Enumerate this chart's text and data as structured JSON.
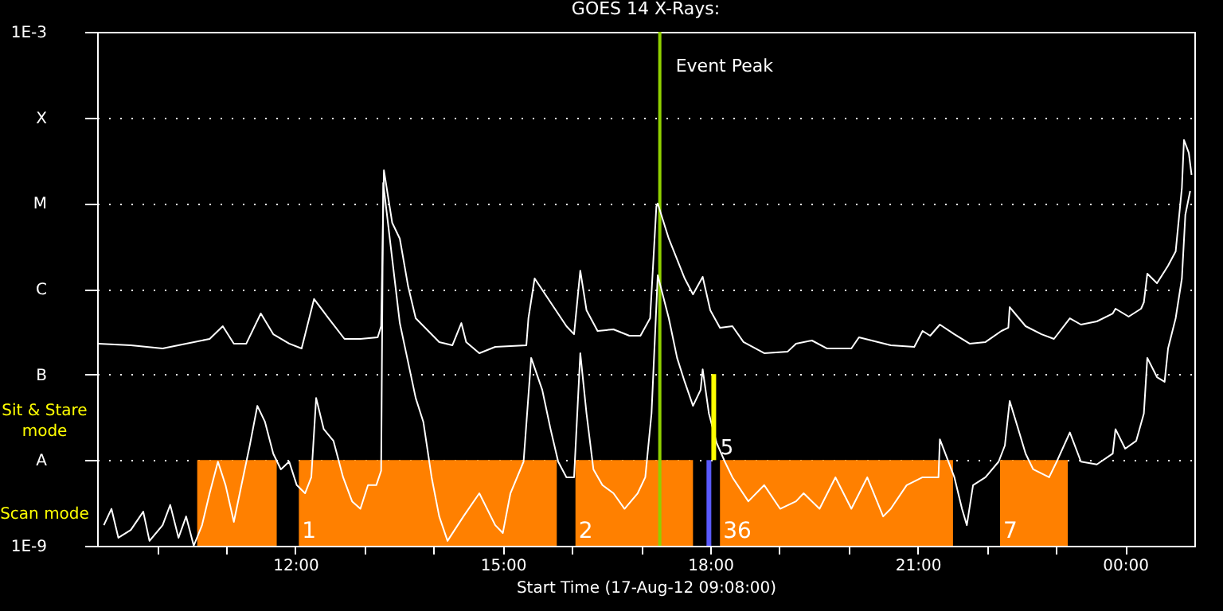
{
  "chart_data": {
    "type": "line",
    "title": "GOES 14 X-Rays:",
    "xlabel": "Start Time (17-Aug-12 09:08:00)",
    "xlim": [
      9.133,
      25.0
    ],
    "xticks": [
      {
        "value": 10,
        "label": null
      },
      {
        "value": 11,
        "label": null
      },
      {
        "value": 12,
        "label": "12:00"
      },
      {
        "value": 13,
        "label": null
      },
      {
        "value": 14,
        "label": null
      },
      {
        "value": 15,
        "label": "15:00"
      },
      {
        "value": 16,
        "label": null
      },
      {
        "value": 17,
        "label": null
      },
      {
        "value": 18,
        "label": "18:00"
      },
      {
        "value": 19,
        "label": null
      },
      {
        "value": 20,
        "label": null
      },
      {
        "value": 21,
        "label": "21:00"
      },
      {
        "value": 22,
        "label": null
      },
      {
        "value": 23,
        "label": null
      },
      {
        "value": 24,
        "label": "00:00"
      }
    ],
    "ylim": [
      1e-09,
      0.001
    ],
    "log": true,
    "grid": "y",
    "line_style": "solid",
    "yticks": [
      {
        "value": 1e-09,
        "label": "1E-9"
      },
      {
        "value": 1e-08,
        "label": "A"
      },
      {
        "value": 1e-07,
        "label": "B"
      },
      {
        "value": 1e-06,
        "label": "C"
      },
      {
        "value": 1e-05,
        "label": "M"
      },
      {
        "value": 0.0001,
        "label": "X"
      },
      {
        "value": 0.001,
        "label": "1E-3"
      }
    ],
    "bands": [
      {
        "axis": "x",
        "from": 10.58,
        "to": 11.73,
        "color": "#ff8000"
      },
      {
        "axis": "x",
        "from": 12.05,
        "to": 15.78,
        "label": "1",
        "color": "#ff8000"
      },
      {
        "axis": "x",
        "from": 16.05,
        "to": 17.75,
        "label": "2",
        "color": "#ff8000"
      },
      {
        "axis": "x",
        "from": 18.14,
        "to": 21.51,
        "label": "36",
        "color": "#ff8000"
      },
      {
        "axis": "x",
        "from": 22.19,
        "to": 23.17,
        "label": "7",
        "color": "#ff8000"
      }
    ],
    "ref_lines": [
      {
        "axis": "x",
        "value": 17.27,
        "label": "Event Peak",
        "color": "#90d000"
      }
    ],
    "annotations": [
      "Sit & Stare mode",
      "Scan mode",
      {
        "text": "5",
        "x": 18.24,
        "y": 1.4e-08
      }
    ],
    "series": [
      {
        "color": "#ffffff",
        "x": [
          9.15,
          9.62,
          10.08,
          10.42,
          10.76,
          10.95,
          11.11,
          11.29,
          11.5,
          11.68,
          11.91,
          12.09,
          12.27,
          12.48,
          12.71,
          12.94,
          13.19,
          13.24,
          13.28,
          13.4,
          13.51,
          13.63,
          13.74,
          14.08,
          14.27,
          14.4,
          14.47,
          14.66,
          14.89,
          15.34,
          15.37,
          15.46,
          15.69,
          15.92,
          16.03,
          16.12,
          16.21,
          16.37,
          16.6,
          16.83,
          16.99,
          17.13,
          17.22,
          17.24,
          17.4,
          17.63,
          17.75,
          17.89,
          18.0,
          18.14,
          18.32,
          18.48,
          18.78,
          19.12,
          19.24,
          19.47,
          19.69,
          20.04,
          20.15,
          20.61,
          20.95,
          21.07,
          21.18,
          21.32,
          21.53,
          21.75,
          21.98,
          22.21,
          22.31,
          22.33,
          22.56,
          22.79,
          22.97,
          23.2,
          23.36,
          23.59,
          23.82,
          23.86,
          24.05,
          24.23,
          24.27,
          24.32,
          24.46,
          24.62,
          24.73,
          24.82,
          24.85,
          24.92,
          24.96
        ],
        "values": [
          2.29e-07,
          2.19e-07,
          2.01e-07,
          2.29e-07,
          2.6e-07,
          3.66e-07,
          2.29e-07,
          2.29e-07,
          5.15e-07,
          2.95e-07,
          2.29e-07,
          2.01e-07,
          7.6e-07,
          4.53e-07,
          2.6e-07,
          2.6e-07,
          2.71e-07,
          3.66e-07,
          2.42e-05,
          5.9e-06,
          3.85e-06,
          1.07e-06,
          4.53e-07,
          2.39e-07,
          2.19e-07,
          3.98e-07,
          2.39e-07,
          1.77e-07,
          2.1e-07,
          2.19e-07,
          4.53e-07,
          1.32e-06,
          6.95e-07,
          3.66e-07,
          2.95e-07,
          1.63e-06,
          5.61e-07,
          3.22e-07,
          3.36e-07,
          2.83e-07,
          2.83e-07,
          4.53e-07,
          9.1e-06,
          9.9e-06,
          3.85e-06,
          1.32e-06,
          8.6e-07,
          1.38e-06,
          5.61e-07,
          3.51e-07,
          3.66e-07,
          2.39e-07,
          1.77e-07,
          1.85e-07,
          2.29e-07,
          2.49e-07,
          2.01e-07,
          2.01e-07,
          2.71e-07,
          2.19e-07,
          2.1e-07,
          3.22e-07,
          2.83e-07,
          3.82e-07,
          2.95e-07,
          2.29e-07,
          2.39e-07,
          3.22e-07,
          3.51e-07,
          6.1e-07,
          3.66e-07,
          2.95e-07,
          2.6e-07,
          4.53e-07,
          3.82e-07,
          4.16e-07,
          5.15e-07,
          5.86e-07,
          4.73e-07,
          5.86e-07,
          6.95e-07,
          1.5e-06,
          1.16e-06,
          1.86e-06,
          2.73e-06,
          1.51e-05,
          5.46e-05,
          3.87e-05,
          2.13e-05
        ]
      },
      {
        "color": "#ffffff",
        "x": [
          9.23,
          9.34,
          9.44,
          9.62,
          9.8,
          9.89,
          10.08,
          10.19,
          10.31,
          10.42,
          10.53,
          10.65,
          10.76,
          10.88,
          10.99,
          11.11,
          11.22,
          11.34,
          11.45,
          11.56,
          11.68,
          11.79,
          11.91,
          12.02,
          12.14,
          12.23,
          12.3,
          12.41,
          12.55,
          12.69,
          12.82,
          12.94,
          13.05,
          13.17,
          13.24,
          13.27,
          13.51,
          13.74,
          13.85,
          13.97,
          14.08,
          14.2,
          14.43,
          14.66,
          14.89,
          15.0,
          15.11,
          15.3,
          15.41,
          15.57,
          15.69,
          15.8,
          15.92,
          16.03,
          16.12,
          16.21,
          16.31,
          16.44,
          16.6,
          16.76,
          16.95,
          17.06,
          17.15,
          17.24,
          17.4,
          17.52,
          17.63,
          17.75,
          17.86,
          17.89,
          17.98,
          18.09,
          18.21,
          18.32,
          18.55,
          18.78,
          19.01,
          19.24,
          19.35,
          19.58,
          19.81,
          20.04,
          20.27,
          20.5,
          20.61,
          20.84,
          21.07,
          21.3,
          21.32,
          21.53,
          21.64,
          21.71,
          21.8,
          21.98,
          22.17,
          22.26,
          22.33,
          22.44,
          22.56,
          22.67,
          22.9,
          23.01,
          23.2,
          23.36,
          23.59,
          23.82,
          23.86,
          24.0,
          24.16,
          24.27,
          24.32,
          24.46,
          24.57,
          24.62,
          24.73,
          24.82,
          24.87,
          24.94
        ],
        "values": [
          1.74e-09,
          2.7e-09,
          1.24e-09,
          1.53e-09,
          2.5e-09,
          1.14e-09,
          1.74e-09,
          3e-09,
          1.24e-09,
          2.2e-09,
          1e-09,
          1.74e-09,
          4.1e-09,
          9.6e-09,
          5.1e-09,
          1.9e-09,
          5.1e-09,
          1.48e-08,
          4.3e-08,
          2.8e-08,
          1.19e-08,
          7.8e-09,
          9.6e-09,
          5.1e-09,
          4.1e-09,
          6.3e-09,
          5.3e-08,
          2.3e-08,
          1.68e-08,
          6.3e-09,
          3.3e-09,
          2.7e-09,
          5.1e-09,
          5.1e-09,
          7.5e-09,
          1.72e-05,
          3.98e-07,
          5.3e-08,
          2.8e-08,
          6.3e-09,
          2.2e-09,
          1.14e-09,
          2.2e-09,
          4.1e-09,
          1.74e-09,
          1.41e-09,
          4.1e-09,
          9.6e-09,
          1.56e-07,
          6.6e-08,
          2.3e-08,
          9.6e-09,
          6.3e-09,
          6.3e-09,
          1.77e-07,
          3.5e-08,
          7.8e-09,
          5.1e-09,
          4.1e-09,
          2.7e-09,
          4.1e-09,
          6.3e-09,
          3.5e-08,
          1.44e-06,
          4.53e-07,
          1.56e-07,
          8.2e-08,
          4.3e-08,
          6.6e-08,
          1.15e-07,
          3.5e-08,
          1.6e-08,
          9.6e-09,
          6.3e-09,
          3.3e-09,
          5.1e-09,
          2.7e-09,
          3.3e-09,
          4.1e-09,
          2.7e-09,
          6.3e-09,
          2.7e-09,
          6.3e-09,
          2.2e-09,
          2.7e-09,
          5.1e-09,
          6.3e-09,
          6.3e-09,
          1.75e-08,
          6.3e-09,
          2.7e-09,
          1.74e-09,
          5.1e-09,
          6.3e-09,
          9.6e-09,
          1.48e-08,
          4.9e-08,
          2.5e-08,
          1.19e-08,
          7.8e-09,
          6.3e-09,
          9.6e-09,
          2.1e-08,
          9.6e-09,
          8.9e-09,
          1.19e-08,
          2.3e-08,
          1.36e-08,
          1.68e-08,
          3.5e-08,
          1.56e-07,
          9.3e-08,
          8.2e-08,
          2.01e-07,
          4.53e-07,
          1.32e-06,
          7.3e-06,
          1.39e-05
        ]
      },
      {
        "color": "#5a5aff",
        "x": [
          17.98,
          17.98
        ],
        "values": [
          1e-09,
          1e-08
        ]
      },
      {
        "color": "#ffff00",
        "x": [
          18.05,
          18.05
        ],
        "values": [
          1e-08,
          1.01e-07
        ]
      }
    ]
  }
}
